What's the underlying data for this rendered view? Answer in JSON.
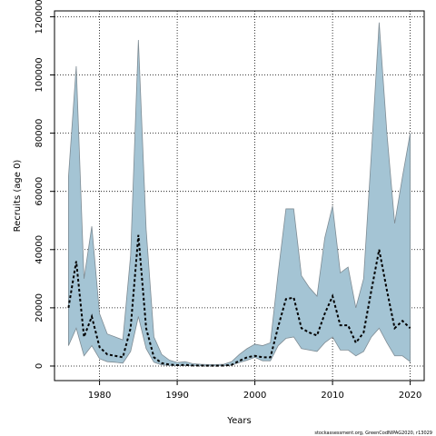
{
  "chart_data": {
    "type": "area",
    "xlabel": "Years",
    "ylabel": "Recruits (age 0)",
    "xlim": [
      1974.2,
      2021.8
    ],
    "ylim": [
      -5000,
      122000
    ],
    "xticks": [
      1980,
      1990,
      2000,
      2010,
      2020
    ],
    "yticks": [
      0,
      20000,
      40000,
      60000,
      80000,
      100000,
      120000
    ],
    "grid": true,
    "colors": {
      "band_fill": "#a4c4d4",
      "band_edge": "#7f8c94",
      "median_line": "#000000",
      "grid": "#000000"
    },
    "years": [
      1976,
      1977,
      1978,
      1979,
      1980,
      1981,
      1982,
      1983,
      1984,
      1985,
      1986,
      1987,
      1988,
      1989,
      1990,
      1991,
      1992,
      1993,
      1994,
      1995,
      1996,
      1997,
      1998,
      1999,
      2000,
      2001,
      2002,
      2003,
      2004,
      2005,
      2006,
      2007,
      2008,
      2009,
      2010,
      2011,
      2012,
      2013,
      2014,
      2015,
      2016,
      2017,
      2018,
      2019,
      2020
    ],
    "series": [
      {
        "role": "upper",
        "values": [
          65000,
          103000,
          30000,
          48000,
          18000,
          11000,
          10000,
          9000,
          38000,
          112000,
          47000,
          10000,
          4000,
          2000,
          1200,
          1500,
          800,
          600,
          500,
          500,
          600,
          1500,
          4000,
          6000,
          7500,
          7000,
          8000,
          32000,
          54000,
          54000,
          31000,
          27000,
          24000,
          44000,
          55000,
          32000,
          34000,
          20000,
          30000,
          73000,
          118000,
          80000,
          49000,
          65000,
          80000
        ]
      },
      {
        "role": "lower",
        "values": [
          7000,
          13000,
          3500,
          7000,
          2500,
          1500,
          1300,
          1000,
          5000,
          17000,
          6000,
          1300,
          400,
          200,
          100,
          200,
          100,
          100,
          80,
          80,
          100,
          300,
          1200,
          2000,
          3000,
          1800,
          1800,
          7000,
          9500,
          10000,
          6000,
          5500,
          5000,
          8000,
          10000,
          5500,
          5500,
          3500,
          5000,
          10000,
          13000,
          8000,
          3500,
          3500,
          1500
        ]
      },
      {
        "role": "median",
        "values": [
          20000,
          36000,
          10000,
          17000,
          6500,
          4000,
          3500,
          3000,
          13000,
          45000,
          13000,
          3000,
          1000,
          500,
          300,
          400,
          200,
          150,
          100,
          100,
          150,
          400,
          1800,
          3000,
          3500,
          3000,
          3000,
          13500,
          23000,
          23500,
          13000,
          11500,
          10500,
          18000,
          24000,
          14000,
          14000,
          8000,
          11500,
          26000,
          40000,
          26000,
          13000,
          15500,
          13000
        ]
      }
    ]
  },
  "footer": {
    "credit": "stockassessment.org, GreenCodNIPAG2020, r13029"
  }
}
